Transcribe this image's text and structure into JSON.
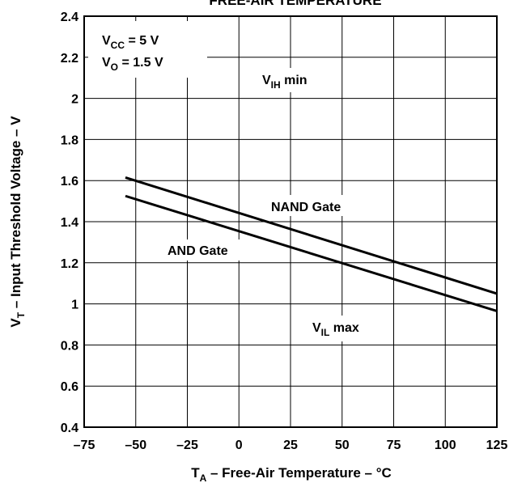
{
  "chart_data": {
    "type": "line",
    "title": "FREE-AIR TEMPERATURE",
    "xlabel": {
      "main": "T",
      "sub": "A",
      "rest": " – Free-Air Temperature – °C"
    },
    "ylabel": {
      "main": "V",
      "sub": "T",
      "rest": " – Input Threshold Voltage – V"
    },
    "xlim": [
      -75,
      125
    ],
    "ylim": [
      0.4,
      2.4
    ],
    "xticks": [
      -75,
      -50,
      -25,
      0,
      25,
      50,
      75,
      100,
      125
    ],
    "xtick_labels": [
      "–75",
      "–50",
      "–25",
      "0",
      "25",
      "50",
      "75",
      "100",
      "125"
    ],
    "yticks": [
      0.4,
      0.6,
      0.8,
      1.0,
      1.2,
      1.4,
      1.6,
      1.8,
      2.0,
      2.2,
      2.4
    ],
    "ytick_labels": [
      "0.4",
      "0.6",
      "0.8",
      "1",
      "1.2",
      "1.4",
      "1.6",
      "1.8",
      "2",
      "2.2",
      "2.4"
    ],
    "grid": true,
    "series": [
      {
        "name": "NAND Gate",
        "x": [
          -55,
          125
        ],
        "y": [
          1.615,
          1.05
        ]
      },
      {
        "name": "AND Gate",
        "x": [
          -55,
          125
        ],
        "y": [
          1.525,
          0.965
        ]
      }
    ],
    "annotations": {
      "conditions": [
        {
          "main": "V",
          "sub": "CC",
          "rest": " = 5 V"
        },
        {
          "main": "V",
          "sub": "O",
          "rest": " = 1.5 V"
        }
      ],
      "vih": {
        "main": "V",
        "sub": "IH",
        "rest": " min"
      },
      "vil": {
        "main": "V",
        "sub": "IL",
        "rest": " max"
      },
      "nand": "NAND Gate",
      "and": "AND Gate"
    },
    "colors": {
      "line": "#000000",
      "grid": "#000000",
      "background": "#ffffff"
    }
  }
}
